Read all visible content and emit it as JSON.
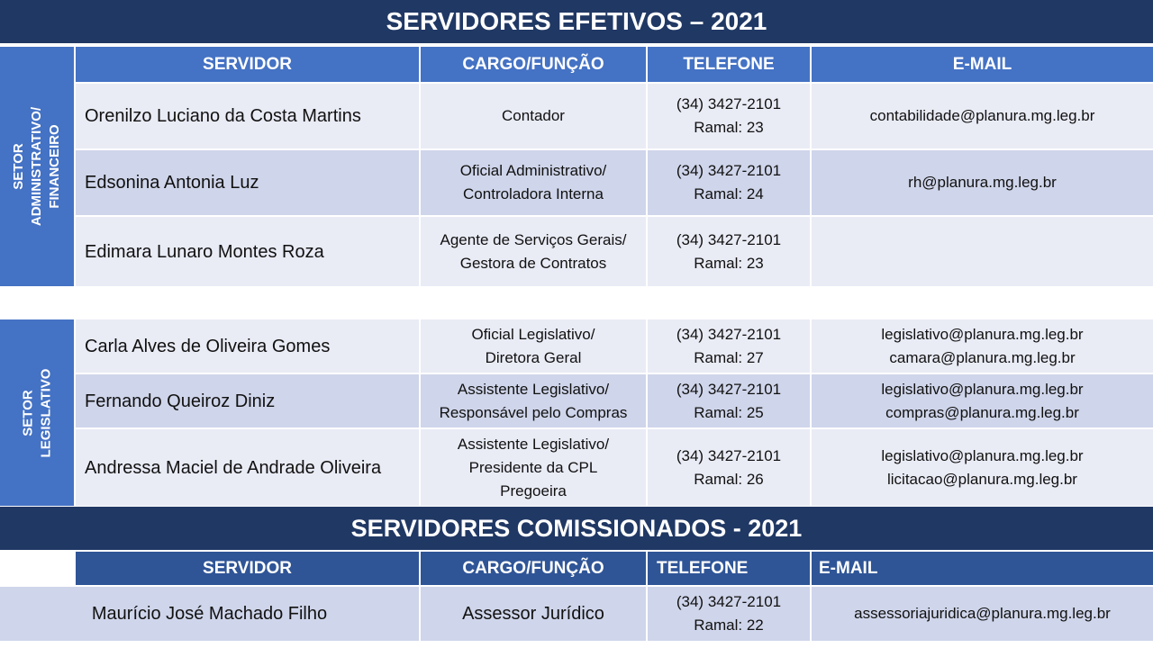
{
  "section1": {
    "title": "SERVIDORES EFETIVOS – 2021",
    "headers": [
      "SERVIDOR",
      "CARGO/FUNÇÃO",
      "TELEFONE",
      "E-MAIL"
    ],
    "groups": [
      {
        "label": "SETOR ADMINISTRATIVO/\nFINANCEIRO",
        "rows": [
          {
            "name": "Orenilzo Luciano da Costa Martins",
            "role": "Contador",
            "phone": "(34) 3427-2101\nRamal: 23",
            "email": "contabilidade@planura.mg.leg.br"
          },
          {
            "name": "Edsonina Antonia Luz",
            "role": "Oficial Administrativo/\nControladora Interna",
            "phone": "(34) 3427-2101\nRamal: 24",
            "email": "rh@planura.mg.leg.br"
          },
          {
            "name": "Edimara Lunaro Montes Roza",
            "role": "Agente de Serviços Gerais/\nGestora de Contratos",
            "phone": "(34) 3427-2101\nRamal: 23",
            "email": ""
          }
        ]
      },
      {
        "label": "SETOR LEGISLATIVO",
        "rows": [
          {
            "name": "Carla Alves de Oliveira Gomes",
            "role": "Oficial Legislativo/\nDiretora Geral",
            "phone": "(34) 3427-2101\nRamal: 27",
            "email": "legislativo@planura.mg.leg.br\ncamara@planura.mg.leg.br"
          },
          {
            "name": "Fernando Queiroz Diniz",
            "role": "Assistente Legislativo/\nResponsável pelo Compras",
            "phone": "(34) 3427-2101\nRamal: 25",
            "email": "legislativo@planura.mg.leg.br\ncompras@planura.mg.leg.br"
          },
          {
            "name": "Andressa Maciel de Andrade Oliveira",
            "role": "Assistente Legislativo/\nPresidente da CPL\nPregoeira",
            "phone": "(34) 3427-2101\nRamal: 26",
            "email": "legislativo@planura.mg.leg.br\nlicitacao@planura.mg.leg.br"
          }
        ]
      }
    ]
  },
  "section2": {
    "title": "SERVIDORES COMISSIONADOS - 2021",
    "headers": [
      "SERVIDOR",
      "CARGO/FUNÇÃO",
      "TELEFONE",
      "E-MAIL"
    ],
    "rows": [
      {
        "name": "Maurício José Machado Filho",
        "role": "Assessor Jurídico",
        "phone": "(34) 3427-2101\nRamal: 22",
        "email": "assessoriajuridica@planura.mg.leg.br"
      }
    ]
  },
  "colors": {
    "title": "#203864",
    "header": "#4472c4",
    "header2": "#2f5597",
    "row_light": "#e9ebf5",
    "row_dark": "#cfd5ea"
  }
}
